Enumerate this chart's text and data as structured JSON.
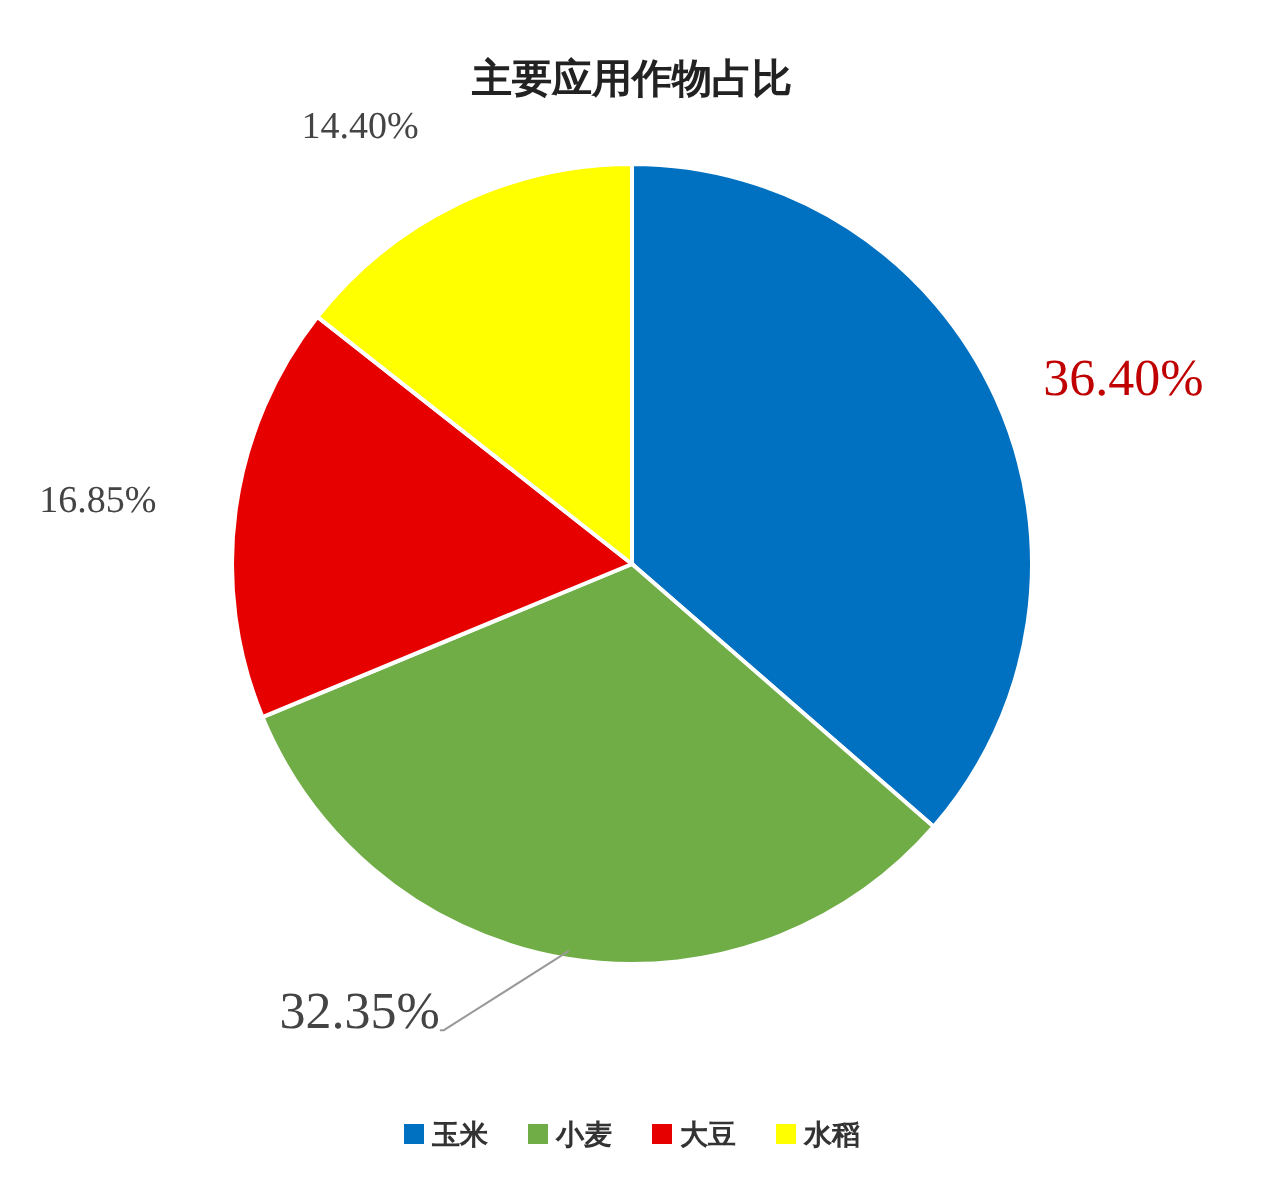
{
  "chart_data": {
    "type": "pie",
    "title": "主要应用作物占比",
    "categories": [
      "玉米",
      "小麦",
      "大豆",
      "水稻"
    ],
    "values": [
      36.4,
      32.35,
      16.85,
      14.4
    ],
    "colors": [
      "#0070c0",
      "#70ad47",
      "#e60000",
      "#ffff00"
    ],
    "value_labels": [
      "36.40%",
      "32.35%",
      "16.85%",
      "14.40%"
    ],
    "legend": "bottom"
  }
}
